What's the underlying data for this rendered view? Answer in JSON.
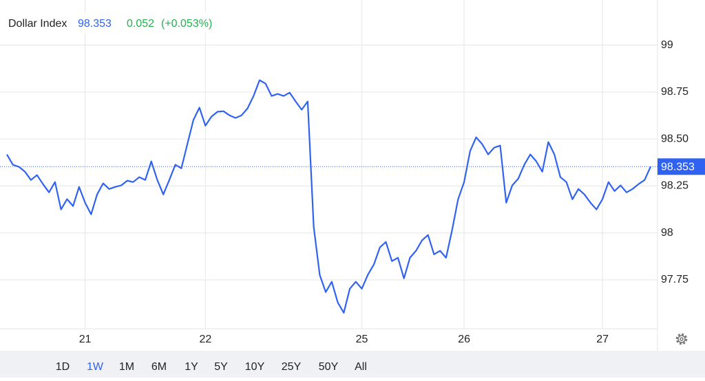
{
  "chart_data": {
    "type": "line",
    "title": "Dollar Index",
    "last_price": 98.353,
    "change": "0.052",
    "change_percent": "(+0.053%)",
    "categories": [
      null,
      null,
      null,
      null,
      null,
      null,
      null,
      null,
      null,
      null,
      null,
      null,
      null,
      "21",
      null,
      null,
      null,
      null,
      null,
      null,
      null,
      null,
      null,
      null,
      null,
      null,
      null,
      null,
      null,
      null,
      null,
      null,
      null,
      "22",
      null,
      null,
      null,
      null,
      null,
      null,
      null,
      null,
      null,
      null,
      null,
      null,
      null,
      null,
      null,
      null,
      null,
      null,
      null,
      null,
      null,
      null,
      null,
      null,
      null,
      "25",
      null,
      null,
      null,
      null,
      null,
      null,
      null,
      null,
      null,
      null,
      null,
      null,
      null,
      null,
      null,
      null,
      "26",
      null,
      null,
      null,
      null,
      null,
      null,
      null,
      null,
      null,
      null,
      null,
      null,
      null,
      null,
      null,
      null,
      null,
      null,
      null,
      null,
      null,
      null,
      "27",
      null,
      null,
      null,
      null,
      null,
      null,
      null,
      null
    ],
    "series": [
      {
        "name": "Dollar Index",
        "color": "#2f62f0",
        "values": [
          98.418,
          98.363,
          98.352,
          98.326,
          98.282,
          98.308,
          98.26,
          98.216,
          98.271,
          98.125,
          98.18,
          98.143,
          98.245,
          98.161,
          98.099,
          98.205,
          98.264,
          98.234,
          98.245,
          98.253,
          98.278,
          98.271,
          98.297,
          98.282,
          98.381,
          98.282,
          98.205,
          98.282,
          98.363,
          98.344,
          98.473,
          98.601,
          98.667,
          98.571,
          98.619,
          98.645,
          98.648,
          98.626,
          98.612,
          98.626,
          98.663,
          98.729,
          98.813,
          98.795,
          98.729,
          98.74,
          98.729,
          98.747,
          98.7,
          98.656,
          98.7,
          98.033,
          97.777,
          97.685,
          97.74,
          97.63,
          97.575,
          97.703,
          97.74,
          97.703,
          97.777,
          97.832,
          97.923,
          97.952,
          97.85,
          97.868,
          97.758,
          97.868,
          97.905,
          97.96,
          97.989,
          97.886,
          97.905,
          97.868,
          98.015,
          98.179,
          98.271,
          98.436,
          98.509,
          98.473,
          98.418,
          98.454,
          98.465,
          98.161,
          98.253,
          98.289,
          98.363,
          98.418,
          98.381,
          98.326,
          98.484,
          98.418,
          98.297,
          98.271,
          98.179,
          98.234,
          98.205,
          98.161,
          98.125,
          98.18,
          98.271,
          98.223,
          98.253,
          98.216,
          98.234,
          98.26,
          98.282,
          98.353
        ]
      }
    ],
    "ylim": [
      97.49,
      99.24
    ],
    "yticks": [
      97.75,
      98,
      98.25,
      {
        "value": 98.5,
        "label": "98.50"
      },
      98.75,
      99
    ],
    "grid": true,
    "ranges": [
      "1D",
      "1W",
      "1M",
      "6M",
      "1Y",
      "5Y",
      "10Y",
      "25Y",
      "50Y",
      "All"
    ],
    "selected_range": 1
  }
}
